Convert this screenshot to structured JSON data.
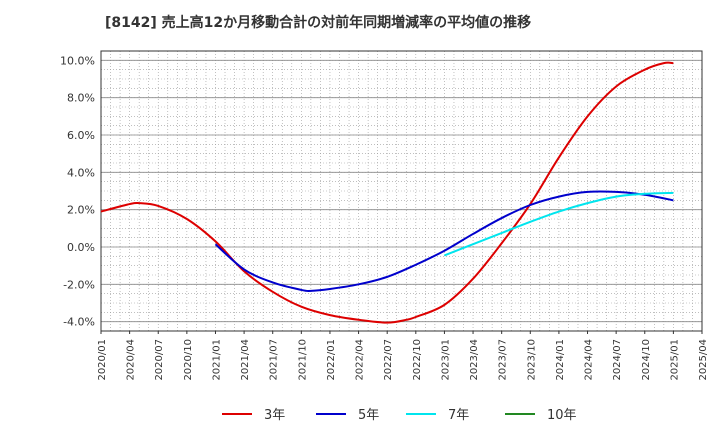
{
  "chart_data": {
    "type": "line",
    "title": "[8142]  売上高12か月移動合計の対前年同期増減率の平均値の推移",
    "xlabel": "",
    "ylabel": "",
    "ylim": [
      -4.5,
      10.5
    ],
    "yticks": [
      -4.0,
      -2.0,
      0.0,
      2.0,
      4.0,
      6.0,
      8.0,
      10.0
    ],
    "ytick_labels": [
      "-4.0%",
      "-2.0%",
      "0.0%",
      "2.0%",
      "4.0%",
      "6.0%",
      "8.0%",
      "10.0%"
    ],
    "x_range": [
      "2020/01",
      "2025/04"
    ],
    "xtick_labels": [
      "2020/01",
      "2020/04",
      "2020/07",
      "2020/10",
      "2021/01",
      "2021/04",
      "2021/07",
      "2021/10",
      "2022/01",
      "2022/04",
      "2022/07",
      "2022/10",
      "2023/01",
      "2023/04",
      "2023/07",
      "2023/10",
      "2024/01",
      "2024/04",
      "2024/07",
      "2024/10",
      "2025/01",
      "2025/04"
    ],
    "grid": true,
    "legend_position": "bottom",
    "series": [
      {
        "name": "3年",
        "color": "#dd0000",
        "points": [
          [
            "2020/01",
            1.9
          ],
          [
            "2020/04",
            2.3
          ],
          [
            "2020/05",
            2.35
          ],
          [
            "2020/07",
            2.2
          ],
          [
            "2020/10",
            1.5
          ],
          [
            "2021/01",
            0.3
          ],
          [
            "2021/04",
            -1.3
          ],
          [
            "2021/07",
            -2.4
          ],
          [
            "2021/10",
            -3.2
          ],
          [
            "2022/01",
            -3.65
          ],
          [
            "2022/04",
            -3.9
          ],
          [
            "2022/07",
            -4.05
          ],
          [
            "2022/09",
            -3.9
          ],
          [
            "2022/10",
            -3.75
          ],
          [
            "2023/01",
            -3.1
          ],
          [
            "2023/04",
            -1.7
          ],
          [
            "2023/07",
            0.2
          ],
          [
            "2023/10",
            2.3
          ],
          [
            "2024/01",
            4.8
          ],
          [
            "2024/04",
            7.0
          ],
          [
            "2024/07",
            8.6
          ],
          [
            "2024/10",
            9.5
          ],
          [
            "2024/12",
            9.85
          ],
          [
            "2025/01",
            9.85
          ]
        ]
      },
      {
        "name": "5年",
        "color": "#0000cc",
        "points": [
          [
            "2021/01",
            0.15
          ],
          [
            "2021/04",
            -1.2
          ],
          [
            "2021/07",
            -1.9
          ],
          [
            "2021/10",
            -2.3
          ],
          [
            "2021/11",
            -2.35
          ],
          [
            "2022/01",
            -2.25
          ],
          [
            "2022/04",
            -2.0
          ],
          [
            "2022/07",
            -1.6
          ],
          [
            "2022/10",
            -0.95
          ],
          [
            "2023/01",
            -0.2
          ],
          [
            "2023/04",
            0.7
          ],
          [
            "2023/07",
            1.55
          ],
          [
            "2023/10",
            2.25
          ],
          [
            "2024/01",
            2.7
          ],
          [
            "2024/04",
            2.95
          ],
          [
            "2024/07",
            2.95
          ],
          [
            "2024/10",
            2.8
          ],
          [
            "2025/01",
            2.5
          ]
        ]
      },
      {
        "name": "7年",
        "color": "#00e5ee",
        "points": [
          [
            "2023/01",
            -0.45
          ],
          [
            "2023/04",
            0.15
          ],
          [
            "2023/07",
            0.75
          ],
          [
            "2023/10",
            1.35
          ],
          [
            "2024/01",
            1.9
          ],
          [
            "2024/04",
            2.35
          ],
          [
            "2024/07",
            2.7
          ],
          [
            "2024/10",
            2.85
          ],
          [
            "2025/01",
            2.9
          ]
        ]
      },
      {
        "name": "10年",
        "color": "#228822",
        "points": []
      }
    ]
  }
}
